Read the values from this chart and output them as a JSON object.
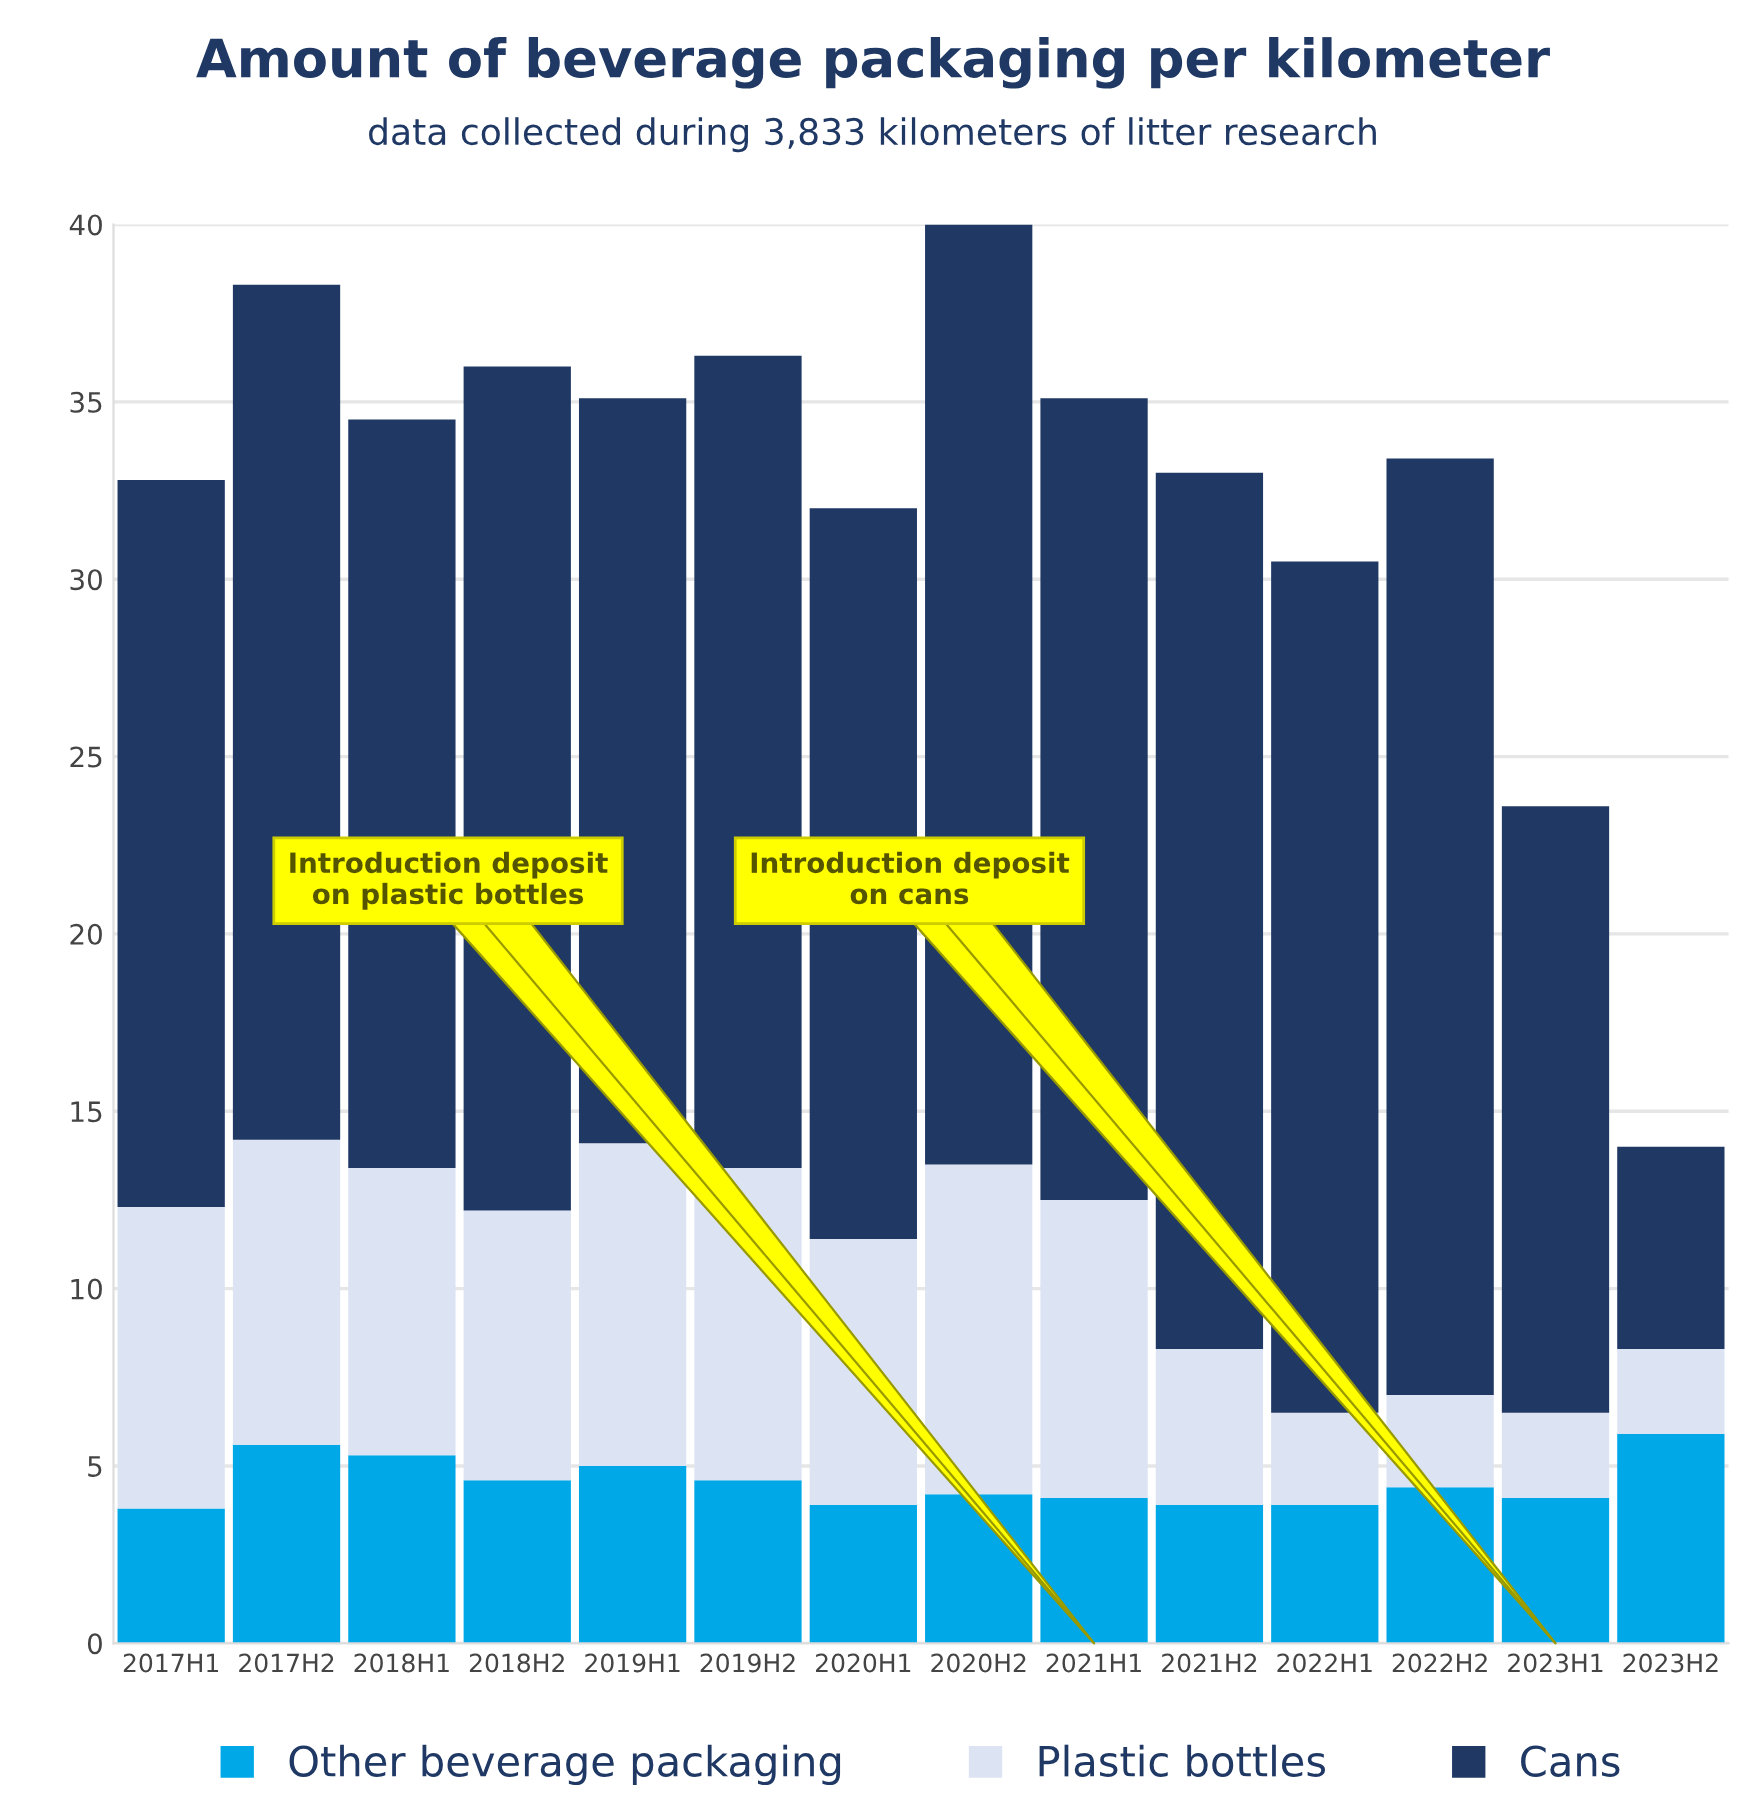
{
  "chart_data": {
    "type": "bar",
    "stacked": true,
    "title": "Amount of beverage packaging per kilometer",
    "subtitle": "data collected during 3,833 kilometers of litter research",
    "categories": [
      "2017H1",
      "2017H2",
      "2018H1",
      "2018H2",
      "2019H1",
      "2019H2",
      "2020H1",
      "2020H2",
      "2021H1",
      "2021H2",
      "2022H1",
      "2022H2",
      "2023H1",
      "2023H2"
    ],
    "series": [
      {
        "name": "Other beverage packaging",
        "color": "#00a8e8",
        "values": [
          3.8,
          5.6,
          5.3,
          4.6,
          5.0,
          4.6,
          3.9,
          4.2,
          4.1,
          3.9,
          3.9,
          4.4,
          4.1,
          5.9
        ]
      },
      {
        "name": "Plastic bottles",
        "color": "#dce3f2",
        "values": [
          8.5,
          8.6,
          8.1,
          7.6,
          9.1,
          8.8,
          7.5,
          9.3,
          8.4,
          4.4,
          2.6,
          2.6,
          2.4,
          2.4
        ]
      },
      {
        "name": "Cans",
        "color": "#1f3864",
        "values": [
          20.5,
          24.1,
          21.1,
          23.8,
          21.0,
          22.9,
          20.6,
          26.5,
          22.6,
          24.7,
          24.0,
          26.4,
          17.1,
          5.7
        ]
      }
    ],
    "ylim": [
      0,
      40
    ],
    "yticks": [
      0,
      5,
      10,
      15,
      20,
      25,
      30,
      35,
      40
    ],
    "grid": "y",
    "legend": "bottom",
    "annotations": [
      {
        "text": "Introduction deposit\non plastic bottles",
        "x": "2021H1",
        "y": 0
      },
      {
        "text": "Introduction deposit\non cans",
        "x": "2023H1",
        "y": 0
      }
    ]
  }
}
